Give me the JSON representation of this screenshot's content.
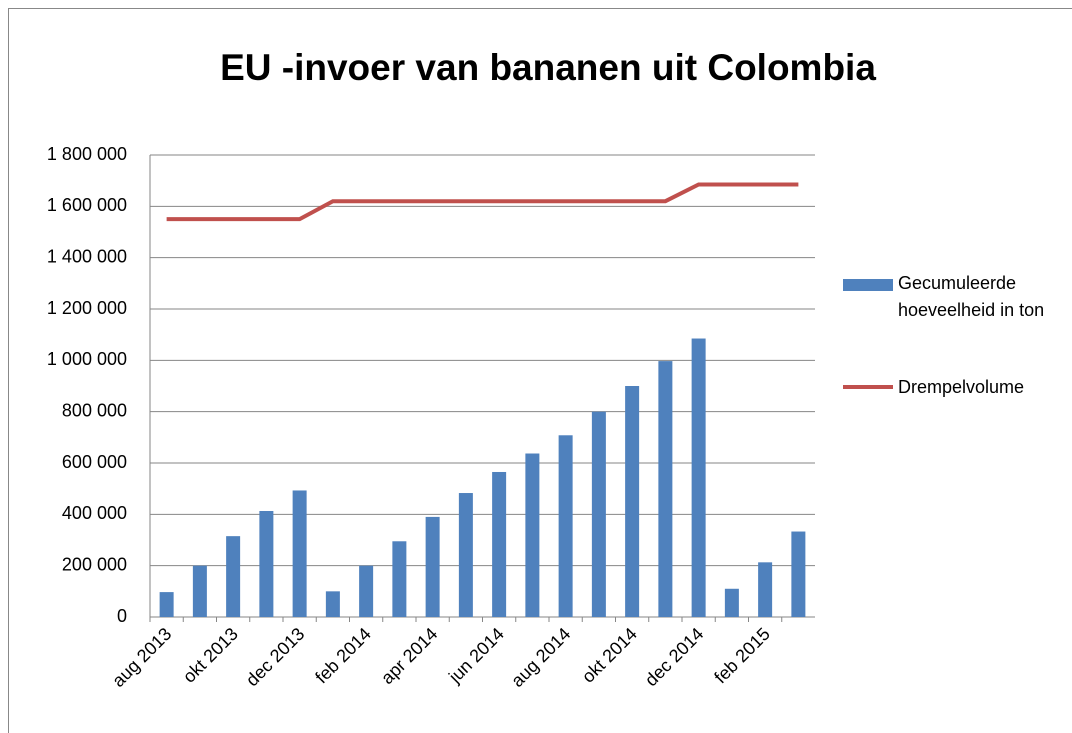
{
  "chart_data": {
    "type": "bar",
    "title": "EU -invoer van bananen uit Colombia",
    "categories": [
      "aug 2013",
      null,
      "okt 2013",
      null,
      "dec 2013",
      null,
      "feb 2014",
      null,
      "apr 2014",
      null,
      "jun 2014",
      null,
      "aug 2014",
      null,
      "okt 2014",
      null,
      "dec 2014",
      null,
      "feb 2015",
      null
    ],
    "series": [
      {
        "name": "Gecumuleerde hoeveelheid in ton",
        "type": "bar",
        "color": "#4f81bd",
        "values": [
          97000,
          200000,
          315000,
          413000,
          493000,
          100000,
          200000,
          295000,
          390000,
          483000,
          565000,
          637000,
          708000,
          800000,
          900000,
          997000,
          1085000,
          110000,
          213000,
          333000
        ]
      },
      {
        "name": "Drempelvolume",
        "type": "line",
        "color": "#c0504d",
        "values": [
          1550000,
          1550000,
          1550000,
          1550000,
          1550000,
          1620000,
          1620000,
          1620000,
          1620000,
          1620000,
          1620000,
          1620000,
          1620000,
          1620000,
          1620000,
          1620000,
          1685000,
          1685000,
          1685000,
          1685000
        ]
      }
    ],
    "ylim": [
      0,
      1800000
    ],
    "yticks": [
      0,
      {
        "value": 200000,
        "label": "200 000"
      },
      {
        "value": 400000,
        "label": "400 000"
      },
      {
        "value": 600000,
        "label": "600 000"
      },
      {
        "value": 800000,
        "label": "800 000"
      },
      {
        "value": 1000000,
        "label": "1 000 000"
      },
      {
        "value": 1200000,
        "label": "1 200 000"
      },
      {
        "value": 1400000,
        "label": "1 400 000"
      },
      {
        "value": 1600000,
        "label": "1 600 000"
      },
      {
        "value": 1800000,
        "label": "1 800 000"
      }
    ],
    "grid": true,
    "legend": "right"
  }
}
